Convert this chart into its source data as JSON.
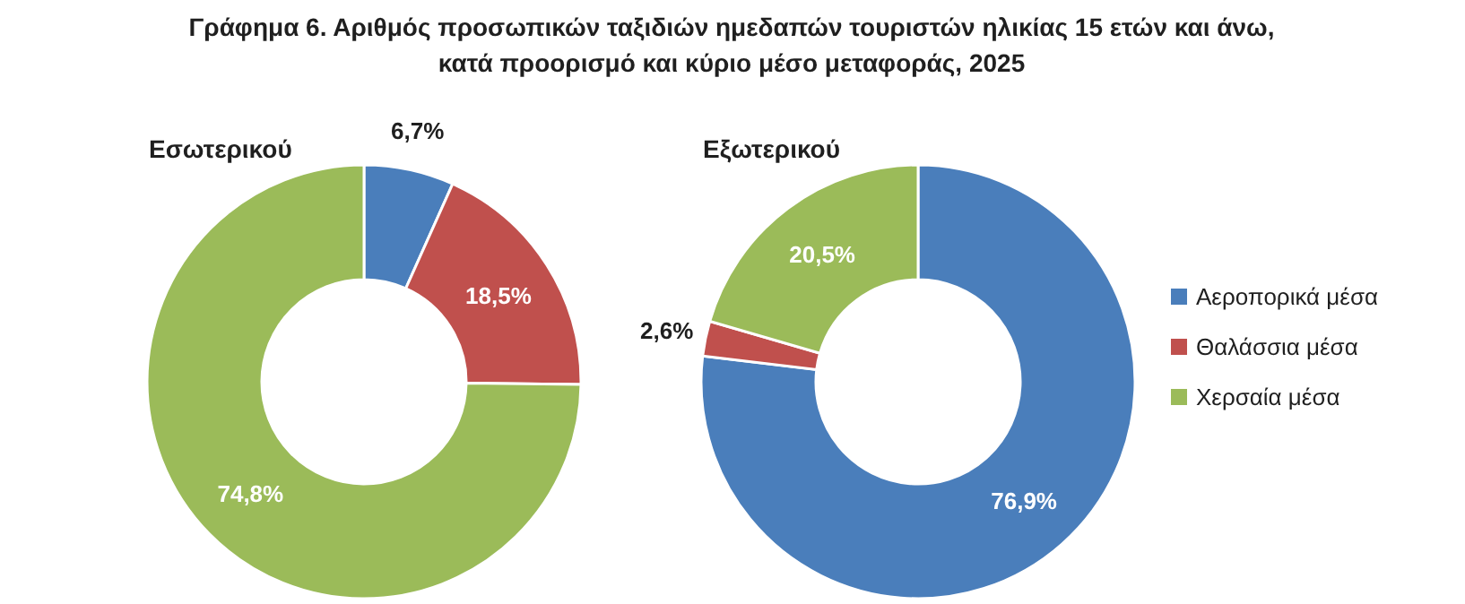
{
  "chart_data": [
    {
      "type": "other",
      "title": "Γράφημα 6. Αριθμός προσωπικών ταξιδιών ημεδαπών τουριστών ηλικίας 15 ετών και άνω,\nκατά προορισμό και κύριο μέσο μεταφοράς, 2025"
    },
    {
      "type": "donut",
      "title": "Εσωτερικού",
      "categories": [
        "Αεροπορικά μέσα",
        "Θαλάσσια μέσα",
        "Χερσαία μέσα"
      ],
      "values": [
        6.7,
        18.5,
        74.8
      ],
      "value_labels": [
        "6,7%",
        "18,5%",
        "74,8%"
      ],
      "colors": [
        "#4a7ebb",
        "#c0504d",
        "#9bbb59"
      ],
      "legend": "right"
    },
    {
      "type": "donut",
      "title": "Εξωτερικού",
      "categories": [
        null,
        null,
        null
      ],
      "values": [
        76.9,
        2.6,
        20.5
      ],
      "value_labels": [
        "76,9%",
        "2,6%",
        "20,5%"
      ],
      "colors": [
        "#4a7ebb",
        "#c0504d",
        "#9bbb59"
      ],
      "legend": false
    }
  ]
}
